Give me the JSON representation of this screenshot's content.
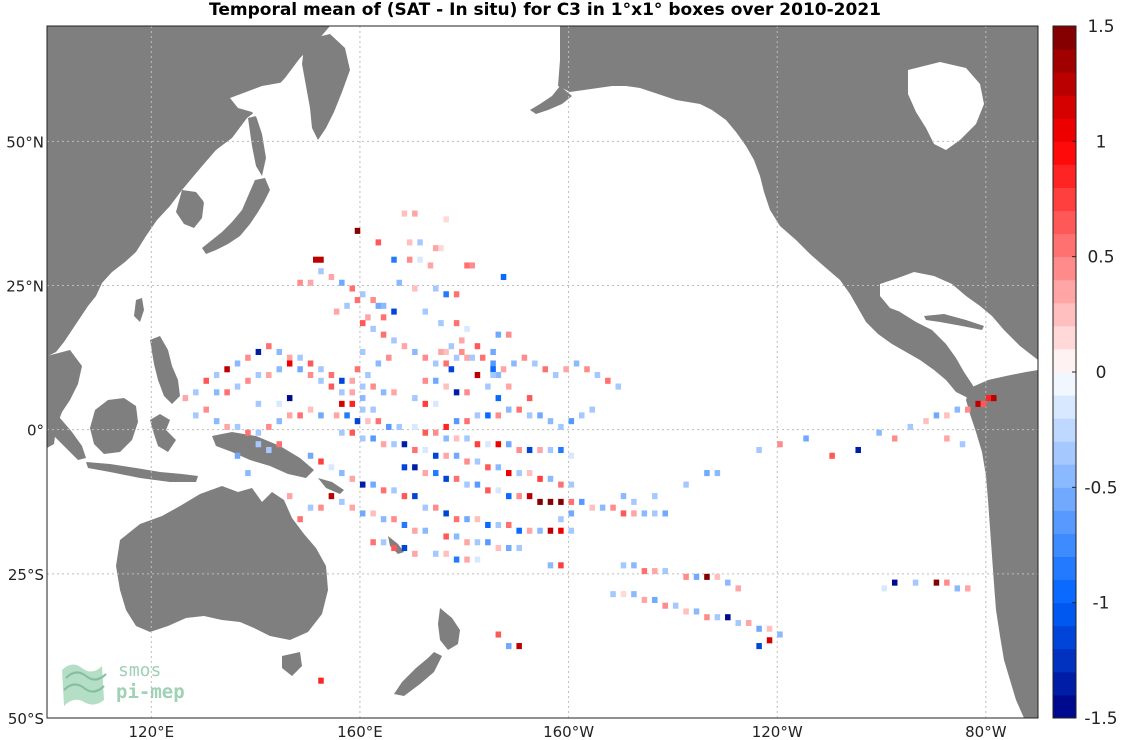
{
  "title": "Temporal mean of (SAT - In situ) for C3 in 1°x1° boxes over 2010-2021",
  "map": {
    "lon_range": [
      100,
      290
    ],
    "lat_range": [
      -50,
      70
    ],
    "lat_ticks": [
      {
        "value": 50,
        "label": "50°N"
      },
      {
        "value": 25,
        "label": "25°N"
      },
      {
        "value": 0,
        "label": "0°"
      },
      {
        "value": -25,
        "label": "25°S"
      },
      {
        "value": -50,
        "label": "50°S"
      }
    ],
    "lon_ticks": [
      {
        "value": 120,
        "label": "120°E"
      },
      {
        "value": 160,
        "label": "160°E"
      },
      {
        "value": 200,
        "label": "160°W"
      },
      {
        "value": 240,
        "label": "120°W"
      },
      {
        "value": 280,
        "label": "80°W"
      }
    ],
    "gridlines": true,
    "land_color": "#7f7f7f",
    "ocean_color": "#ffffff"
  },
  "colorbar": {
    "range": [
      -1.5,
      1.5
    ],
    "levels": 30,
    "position": "right",
    "ticks": [
      {
        "value": 1.5,
        "label": "1.5"
      },
      {
        "value": 1,
        "label": "1"
      },
      {
        "value": 0.5,
        "label": "0.5"
      },
      {
        "value": 0,
        "label": "0"
      },
      {
        "value": -0.5,
        "label": "-0.5"
      },
      {
        "value": -1,
        "label": "-1"
      },
      {
        "value": -1.5,
        "label": "-1.5"
      }
    ]
  },
  "logo": {
    "line1": "smos",
    "line2": "pi-mep",
    "color": "#8fc9a8"
  },
  "boxes": [
    [
      168,
      37,
      0.2
    ],
    [
      170,
      37,
      0.3
    ],
    [
      176,
      36,
      0.1
    ],
    [
      159,
      34,
      1.5
    ],
    [
      163,
      32,
      0.6
    ],
    [
      169,
      32,
      0.2
    ],
    [
      171,
      32,
      -0.3
    ],
    [
      174,
      31,
      0.3
    ],
    [
      175,
      31,
      0.1
    ],
    [
      151,
      29,
      1.3
    ],
    [
      152,
      29,
      1.2
    ],
    [
      166,
      29,
      -0.8
    ],
    [
      169,
      29,
      0.4
    ],
    [
      171,
      29,
      -0.2
    ],
    [
      173,
      28,
      0.3
    ],
    [
      180,
      28,
      0.5
    ],
    [
      181,
      28,
      0.4
    ],
    [
      187,
      26,
      -1.0
    ],
    [
      148,
      25,
      0.4
    ],
    [
      150,
      25,
      0.3
    ],
    [
      167,
      25,
      -0.5
    ],
    [
      170,
      24,
      0.2
    ],
    [
      174,
      24,
      -0.3
    ],
    [
      176,
      23,
      -0.8
    ],
    [
      178,
      23,
      0.5
    ],
    [
      163,
      21,
      -0.6
    ],
    [
      166,
      20,
      -1.2
    ],
    [
      172,
      20,
      -0.4
    ],
    [
      161,
      19,
      0.3
    ],
    [
      164,
      19,
      0.5
    ],
    [
      175,
      18,
      -0.3
    ],
    [
      178,
      18,
      0.5
    ],
    [
      180,
      17,
      -0.2
    ],
    [
      179,
      15,
      0.3
    ],
    [
      182,
      14,
      0.6
    ],
    [
      176,
      13,
      0.2
    ],
    [
      185,
      13,
      -0.6
    ],
    [
      185,
      11,
      -0.7
    ],
    [
      185,
      10,
      -1.0
    ],
    [
      177,
      10,
      -1.2
    ],
    [
      182,
      9,
      1.3
    ],
    [
      186,
      9,
      -0.5
    ],
    [
      172,
      8,
      0.4
    ],
    [
      174,
      8,
      -0.6
    ],
    [
      176,
      7,
      0.2
    ],
    [
      184,
      7,
      -0.4
    ],
    [
      188,
      7,
      0.3
    ],
    [
      178,
      6,
      -1.3
    ],
    [
      180,
      6,
      0.4
    ],
    [
      186,
      5,
      -1.0
    ],
    [
      192,
      5,
      0.6
    ],
    [
      170,
      5,
      -0.3
    ],
    [
      172,
      4,
      0.7
    ],
    [
      174,
      4,
      -0.2
    ],
    [
      146,
      5,
      -1.5
    ],
    [
      140,
      4,
      -0.3
    ],
    [
      144,
      4,
      -0.2
    ],
    [
      156,
      4,
      1.1
    ],
    [
      158,
      4,
      0.8
    ],
    [
      160,
      3,
      -0.4
    ],
    [
      162,
      3,
      -0.3
    ],
    [
      150,
      3,
      0.2
    ],
    [
      148,
      2,
      0.5
    ],
    [
      152,
      2,
      -0.6
    ],
    [
      155,
      2,
      0.3
    ],
    [
      157,
      2,
      -0.8
    ],
    [
      159,
      1,
      -1.1
    ],
    [
      161,
      1,
      0.2
    ],
    [
      163,
      1,
      0.5
    ],
    [
      165,
      0,
      -0.7
    ],
    [
      167,
      0,
      -0.3
    ],
    [
      170,
      0,
      -0.2
    ],
    [
      172,
      -1,
      0.6
    ],
    [
      174,
      -1,
      0.4
    ],
    [
      176,
      -2,
      -0.5
    ],
    [
      178,
      -2,
      0.2
    ],
    [
      180,
      -2,
      -0.4
    ],
    [
      182,
      -3,
      0.7
    ],
    [
      184,
      -3,
      -0.2
    ],
    [
      186,
      -3,
      1.0
    ],
    [
      188,
      -3,
      -0.6
    ],
    [
      190,
      -4,
      0.4
    ],
    [
      192,
      -4,
      -1.2
    ],
    [
      194,
      -4,
      0.3
    ],
    [
      196,
      -4,
      -0.4
    ],
    [
      198,
      -4,
      -0.8
    ],
    [
      200,
      -5,
      -0.2
    ],
    [
      176,
      0,
      0.8
    ],
    [
      178,
      1,
      -0.7
    ],
    [
      180,
      1,
      0.5
    ],
    [
      182,
      2,
      -0.3
    ],
    [
      184,
      2,
      -0.9
    ],
    [
      186,
      2,
      0.4
    ],
    [
      188,
      3,
      -0.5
    ],
    [
      190,
      3,
      0.5
    ],
    [
      192,
      2,
      -0.3
    ],
    [
      194,
      2,
      -0.6
    ],
    [
      196,
      1,
      -0.5
    ],
    [
      198,
      0,
      -0.4
    ],
    [
      200,
      1,
      -0.7
    ],
    [
      202,
      2,
      -0.3
    ],
    [
      204,
      3,
      -0.4
    ],
    [
      156,
      -1,
      -0.4
    ],
    [
      158,
      -1,
      0.6
    ],
    [
      160,
      -2,
      -0.3
    ],
    [
      162,
      -2,
      -0.7
    ],
    [
      164,
      -3,
      0.3
    ],
    [
      166,
      -3,
      -0.4
    ],
    [
      168,
      -3,
      -1.3
    ],
    [
      170,
      -4,
      0.5
    ],
    [
      172,
      -4,
      -0.2
    ],
    [
      174,
      -5,
      -1.1
    ],
    [
      176,
      -5,
      0.3
    ],
    [
      178,
      -5,
      -0.6
    ],
    [
      180,
      -6,
      0.4
    ],
    [
      182,
      -6,
      -0.3
    ],
    [
      184,
      -7,
      0.6
    ],
    [
      186,
      -7,
      -0.5
    ],
    [
      188,
      -8,
      1.0
    ],
    [
      190,
      -8,
      -0.4
    ],
    [
      192,
      -8,
      0.2
    ],
    [
      194,
      -9,
      0.7
    ],
    [
      196,
      -9,
      -0.5
    ],
    [
      198,
      -10,
      0.5
    ],
    [
      200,
      -10,
      -0.3
    ],
    [
      168,
      -7,
      -1.2
    ],
    [
      170,
      -7,
      -1.4
    ],
    [
      172,
      -8,
      0.3
    ],
    [
      174,
      -8,
      -0.8
    ],
    [
      176,
      -9,
      -1.2
    ],
    [
      178,
      -9,
      0.5
    ],
    [
      180,
      -10,
      -0.4
    ],
    [
      182,
      -10,
      -0.7
    ],
    [
      184,
      -11,
      0.6
    ],
    [
      186,
      -11,
      -0.2
    ],
    [
      188,
      -12,
      -1.0
    ],
    [
      190,
      -12,
      0.4
    ],
    [
      192,
      -12,
      1.3
    ],
    [
      194,
      -13,
      1.5
    ],
    [
      196,
      -13,
      1.5
    ],
    [
      198,
      -13,
      1.4
    ],
    [
      200,
      -13,
      0.5
    ],
    [
      202,
      -13,
      -0.7
    ],
    [
      204,
      -14,
      0.2
    ],
    [
      206,
      -14,
      -0.5
    ],
    [
      208,
      -14,
      0.4
    ],
    [
      210,
      -15,
      0.6
    ],
    [
      212,
      -15,
      0.3
    ],
    [
      214,
      -15,
      -0.5
    ],
    [
      216,
      -15,
      -0.4
    ],
    [
      218,
      -15,
      -0.6
    ],
    [
      172,
      -14,
      -0.3
    ],
    [
      174,
      -14,
      0.4
    ],
    [
      176,
      -15,
      -1.1
    ],
    [
      178,
      -16,
      0.5
    ],
    [
      180,
      -16,
      -0.6
    ],
    [
      182,
      -16,
      0.2
    ],
    [
      184,
      -17,
      -0.9
    ],
    [
      186,
      -17,
      -0.4
    ],
    [
      188,
      -17,
      0.5
    ],
    [
      190,
      -18,
      -1.0
    ],
    [
      192,
      -18,
      0.3
    ],
    [
      194,
      -18,
      -0.5
    ],
    [
      196,
      -18,
      1.2
    ],
    [
      198,
      -18,
      1.0
    ],
    [
      200,
      -18,
      -0.4
    ],
    [
      176,
      -19,
      0.6
    ],
    [
      178,
      -19,
      -0.5
    ],
    [
      180,
      -20,
      0.3
    ],
    [
      182,
      -20,
      -0.3
    ],
    [
      184,
      -20,
      -0.7
    ],
    [
      186,
      -21,
      0.2
    ],
    [
      188,
      -21,
      -0.6
    ],
    [
      190,
      -21,
      -0.4
    ],
    [
      174,
      -22,
      -0.4
    ],
    [
      176,
      -22,
      0.2
    ],
    [
      178,
      -23,
      -0.8
    ],
    [
      180,
      -23,
      0.3
    ],
    [
      182,
      -23,
      -0.2
    ],
    [
      196,
      -24,
      -0.5
    ],
    [
      198,
      -24,
      0.7
    ],
    [
      210,
      -24,
      -0.4
    ],
    [
      212,
      -24,
      -0.5
    ],
    [
      214,
      -25,
      0.5
    ],
    [
      216,
      -25,
      0.3
    ],
    [
      218,
      -25,
      -0.3
    ],
    [
      222,
      -26,
      0.4
    ],
    [
      224,
      -26,
      -0.6
    ],
    [
      226,
      -26,
      1.4
    ],
    [
      228,
      -26,
      0.2
    ],
    [
      230,
      -27,
      -0.5
    ],
    [
      232,
      -28,
      0.3
    ],
    [
      208,
      -29,
      -0.3
    ],
    [
      210,
      -29,
      0.1
    ],
    [
      212,
      -29,
      -0.5
    ],
    [
      214,
      -30,
      0.3
    ],
    [
      216,
      -30,
      -0.6
    ],
    [
      218,
      -31,
      0.4
    ],
    [
      220,
      -31,
      -0.3
    ],
    [
      222,
      -32,
      0.2
    ],
    [
      224,
      -32,
      -0.5
    ],
    [
      226,
      -33,
      0.4
    ],
    [
      228,
      -33,
      -0.4
    ],
    [
      230,
      -33,
      0.2
    ],
    [
      232,
      -34,
      -0.4
    ],
    [
      234,
      -34,
      0.3
    ],
    [
      236,
      -35,
      -0.6
    ],
    [
      238,
      -35,
      0.2
    ],
    [
      240,
      -36,
      -0.5
    ],
    [
      260,
      -28,
      -0.2
    ],
    [
      262,
      -27,
      -1.5
    ],
    [
      266,
      -27,
      -0.3
    ],
    [
      270,
      -27,
      1.4
    ],
    [
      272,
      -27,
      0.4
    ],
    [
      274,
      -28,
      -0.5
    ],
    [
      276,
      -28,
      0.3
    ],
    [
      230,
      -33,
      -1.5
    ],
    [
      238,
      -37,
      1.1
    ],
    [
      236,
      -38,
      -1.2
    ],
    [
      186,
      -36,
      0.6
    ],
    [
      188,
      -38,
      -0.6
    ],
    [
      190,
      -38,
      1.2
    ],
    [
      152,
      -44,
      0.8
    ],
    [
      146,
      -12,
      0.3
    ],
    [
      265,
      0,
      -0.4
    ],
    [
      268,
      1,
      0.2
    ],
    [
      270,
      2,
      -0.6
    ],
    [
      272,
      2,
      0.2
    ],
    [
      274,
      3,
      -0.5
    ],
    [
      276,
      3,
      0.4
    ],
    [
      278,
      4,
      1.2
    ],
    [
      279,
      4,
      0.6
    ],
    [
      280,
      5,
      0.9
    ],
    [
      281,
      5,
      1.3
    ],
    [
      275,
      -3,
      -0.4
    ],
    [
      272,
      -2,
      0.3
    ],
    [
      262,
      -2,
      0.4
    ],
    [
      259,
      -1,
      -0.5
    ],
    [
      255,
      -4,
      -1.3
    ],
    [
      250,
      -5,
      0.6
    ],
    [
      245,
      -2,
      -0.6
    ],
    [
      240,
      -3,
      0.4
    ],
    [
      236,
      -4,
      -0.4
    ],
    [
      228,
      -8,
      -0.5
    ],
    [
      226,
      -8,
      -0.6
    ],
    [
      222,
      -10,
      -0.3
    ],
    [
      216,
      -12,
      -0.4
    ],
    [
      212,
      -13,
      -0.3
    ],
    [
      210,
      -12,
      -0.5
    ],
    [
      200,
      -15,
      -0.6
    ],
    [
      198,
      -16,
      -0.4
    ],
    [
      144,
      -3,
      0.5
    ],
    [
      142,
      -4,
      -0.3
    ],
    [
      150,
      -5,
      -0.6
    ],
    [
      152,
      -6,
      0.7
    ],
    [
      154,
      -7,
      -0.2
    ],
    [
      156,
      -8,
      -0.5
    ],
    [
      158,
      -9,
      0.3
    ],
    [
      160,
      -10,
      -1.3
    ],
    [
      162,
      -10,
      -0.6
    ],
    [
      164,
      -11,
      0.5
    ],
    [
      166,
      -11,
      -0.3
    ],
    [
      168,
      -12,
      0.6
    ],
    [
      170,
      -12,
      -1.2
    ],
    [
      154,
      -12,
      1.3
    ],
    [
      156,
      -13,
      -0.4
    ],
    [
      158,
      -14,
      0.3
    ],
    [
      160,
      -15,
      -0.6
    ],
    [
      162,
      -15,
      0.2
    ],
    [
      164,
      -16,
      -0.5
    ],
    [
      166,
      -16,
      0.4
    ],
    [
      168,
      -17,
      -0.8
    ],
    [
      170,
      -18,
      0.3
    ],
    [
      172,
      -18,
      -0.5
    ],
    [
      162,
      -20,
      0.5
    ],
    [
      164,
      -20,
      -0.3
    ],
    [
      166,
      -21,
      0.6
    ],
    [
      168,
      -21,
      -1.2
    ],
    [
      170,
      -22,
      0.3
    ],
    [
      150,
      -14,
      -0.3
    ],
    [
      152,
      -14,
      0.4
    ],
    [
      148,
      -16,
      0.5
    ],
    [
      140,
      -3,
      -0.4
    ],
    [
      138,
      -8,
      -0.5
    ],
    [
      126,
      5,
      0.3
    ],
    [
      128,
      6,
      -0.4
    ],
    [
      130,
      8,
      0.6
    ],
    [
      132,
      9,
      -0.3
    ],
    [
      134,
      10,
      1.2
    ],
    [
      136,
      11,
      -0.5
    ],
    [
      138,
      12,
      0.4
    ],
    [
      140,
      13,
      -1.3
    ],
    [
      142,
      14,
      0.5
    ],
    [
      144,
      13,
      -0.5
    ],
    [
      146,
      12,
      0.3
    ],
    [
      148,
      12,
      -0.4
    ],
    [
      150,
      11,
      0.6
    ],
    [
      152,
      10,
      -0.3
    ],
    [
      154,
      9,
      0.5
    ],
    [
      156,
      8,
      -1.2
    ],
    [
      158,
      8,
      0.3
    ],
    [
      160,
      7,
      -0.4
    ],
    [
      162,
      7,
      0.4
    ],
    [
      164,
      6,
      -0.5
    ],
    [
      166,
      6,
      0.3
    ],
    [
      132,
      6,
      -0.5
    ],
    [
      134,
      6,
      0.5
    ],
    [
      136,
      7,
      -0.3
    ],
    [
      138,
      8,
      0.4
    ],
    [
      140,
      9,
      -0.4
    ],
    [
      142,
      9,
      0.3
    ],
    [
      144,
      10,
      -0.5
    ],
    [
      146,
      11,
      1.0
    ],
    [
      148,
      10,
      -0.6
    ],
    [
      150,
      9,
      0.4
    ],
    [
      152,
      8,
      -0.3
    ],
    [
      154,
      7,
      0.6
    ],
    [
      156,
      6,
      -0.4
    ],
    [
      158,
      6,
      0.3
    ],
    [
      160,
      5,
      -0.5
    ],
    [
      128,
      2,
      -0.3
    ],
    [
      130,
      3,
      0.4
    ],
    [
      132,
      1,
      -0.5
    ],
    [
      134,
      0,
      0.3
    ],
    [
      136,
      0,
      -0.4
    ],
    [
      138,
      -1,
      0.5
    ],
    [
      140,
      -1,
      -0.3
    ],
    [
      142,
      0,
      0.4
    ],
    [
      144,
      1,
      -0.5
    ],
    [
      146,
      2,
      0.3
    ],
    [
      136,
      -5,
      -0.6
    ],
    [
      160,
      18,
      0.6
    ],
    [
      162,
      17,
      -0.3
    ],
    [
      164,
      16,
      0.5
    ],
    [
      166,
      15,
      -0.4
    ],
    [
      168,
      14,
      0.3
    ],
    [
      170,
      13,
      -0.5
    ],
    [
      172,
      12,
      0.4
    ],
    [
      174,
      11,
      -0.3
    ],
    [
      176,
      11,
      0.5
    ],
    [
      178,
      12,
      -0.4
    ],
    [
      180,
      12,
      0.3
    ],
    [
      163,
      11,
      -0.5
    ],
    [
      165,
      12,
      0.4
    ],
    [
      160,
      13,
      -0.4
    ],
    [
      159,
      10,
      0.5
    ],
    [
      161,
      9,
      -0.3
    ],
    [
      186,
      16,
      -0.6
    ],
    [
      188,
      16,
      0.4
    ],
    [
      152,
      27,
      -0.4
    ],
    [
      154,
      26,
      0.3
    ],
    [
      156,
      25,
      -0.6
    ],
    [
      158,
      24,
      0.5
    ],
    [
      160,
      23,
      -0.3
    ],
    [
      162,
      22,
      0.4
    ],
    [
      164,
      21,
      -0.5
    ],
    [
      155,
      20,
      0.3
    ],
    [
      157,
      21,
      -0.4
    ],
    [
      159,
      22,
      0.5
    ],
    [
      175,
      13,
      0.3
    ],
    [
      177,
      14,
      -0.4
    ],
    [
      179,
      13,
      0.4
    ],
    [
      181,
      12,
      -0.3
    ],
    [
      183,
      12,
      0.5
    ],
    [
      185,
      9,
      -0.4
    ],
    [
      187,
      10,
      0.3
    ],
    [
      189,
      11,
      -0.5
    ],
    [
      191,
      12,
      0.4
    ],
    [
      193,
      11,
      -0.3
    ],
    [
      195,
      10,
      0.5
    ],
    [
      197,
      9,
      -0.4
    ],
    [
      199,
      10,
      0.3
    ],
    [
      201,
      11,
      -0.5
    ],
    [
      203,
      10,
      0.4
    ],
    [
      205,
      9,
      -0.3
    ],
    [
      207,
      8,
      0.5
    ],
    [
      209,
      7,
      -0.4
    ]
  ]
}
